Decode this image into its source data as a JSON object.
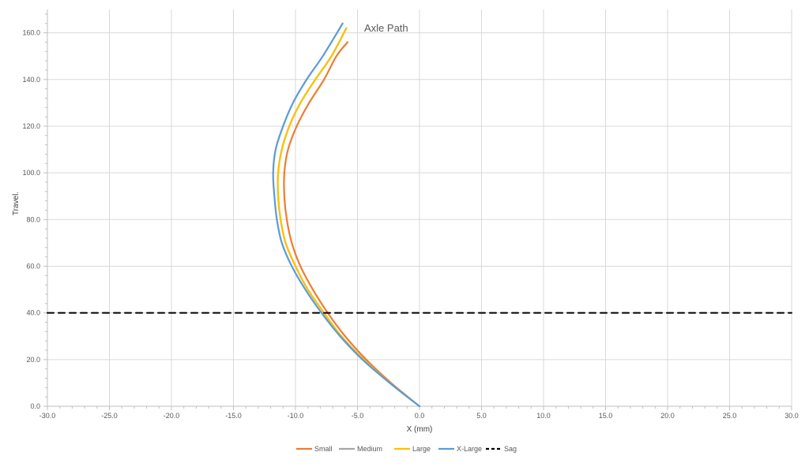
{
  "chart_data": {
    "type": "line",
    "title": "Axle Path",
    "xlabel": "X (mm)",
    "ylabel": "Travel.",
    "xlim": [
      -30,
      30
    ],
    "ylim": [
      0,
      170
    ],
    "x_ticks": [
      "-30.0",
      "-25.0",
      "-20.0",
      "-15.0",
      "-10.0",
      "-5.0",
      "0.0",
      "5.0",
      "10.0",
      "15.0",
      "20.0",
      "25.0",
      "30.0"
    ],
    "y_ticks": [
      "0.0",
      "20.0",
      "40.0",
      "60.0",
      "80.0",
      "100.0",
      "120.0",
      "140.0",
      "160.0"
    ],
    "grid": true,
    "legend_position": "bottom",
    "series": [
      {
        "name": "Small",
        "color": "#ED7D31",
        "points": [
          [
            0,
            0
          ],
          [
            -2.3,
            10
          ],
          [
            -4.3,
            20
          ],
          [
            -6.0,
            30
          ],
          [
            -7.4,
            40
          ],
          [
            -8.6,
            50
          ],
          [
            -9.6,
            60
          ],
          [
            -10.3,
            70
          ],
          [
            -10.7,
            80
          ],
          [
            -10.9,
            90
          ],
          [
            -10.9,
            100
          ],
          [
            -10.6,
            110
          ],
          [
            -9.9,
            120
          ],
          [
            -8.9,
            130
          ],
          [
            -7.7,
            140
          ],
          [
            -6.7,
            150
          ],
          [
            -5.8,
            156
          ]
        ]
      },
      {
        "name": "Medium",
        "color": "#A5A5A5",
        "points": [
          [
            0,
            0
          ],
          [
            -2.4,
            10
          ],
          [
            -4.5,
            20
          ],
          [
            -6.3,
            30
          ],
          [
            -7.7,
            40
          ],
          [
            -9.0,
            50
          ],
          [
            -10.0,
            60
          ],
          [
            -10.8,
            70
          ],
          [
            -11.2,
            80
          ],
          [
            -11.4,
            90
          ],
          [
            -11.4,
            100
          ],
          [
            -11.1,
            110
          ],
          [
            -10.5,
            120
          ],
          [
            -9.6,
            130
          ],
          [
            -8.4,
            140
          ],
          [
            -7.1,
            150
          ],
          [
            -5.9,
            162
          ]
        ]
      },
      {
        "name": "Large",
        "color": "#FFC000",
        "points": [
          [
            0,
            0
          ],
          [
            -2.4,
            10
          ],
          [
            -4.5,
            20
          ],
          [
            -6.3,
            30
          ],
          [
            -7.7,
            40
          ],
          [
            -9.0,
            50
          ],
          [
            -10.0,
            60
          ],
          [
            -10.8,
            70
          ],
          [
            -11.2,
            80
          ],
          [
            -11.4,
            90
          ],
          [
            -11.4,
            100
          ],
          [
            -11.1,
            110
          ],
          [
            -10.5,
            120
          ],
          [
            -9.6,
            130
          ],
          [
            -8.4,
            140
          ],
          [
            -7.1,
            150
          ],
          [
            -5.9,
            162
          ]
        ]
      },
      {
        "name": "X-Large",
        "color": "#5B9BD5",
        "points": [
          [
            0,
            0
          ],
          [
            -2.4,
            10
          ],
          [
            -4.6,
            20
          ],
          [
            -6.4,
            30
          ],
          [
            -7.9,
            40
          ],
          [
            -9.2,
            50
          ],
          [
            -10.3,
            60
          ],
          [
            -11.1,
            70
          ],
          [
            -11.5,
            80
          ],
          [
            -11.7,
            90
          ],
          [
            -11.8,
            100
          ],
          [
            -11.6,
            110
          ],
          [
            -11.0,
            120
          ],
          [
            -10.2,
            130
          ],
          [
            -9.1,
            140
          ],
          [
            -7.8,
            150
          ],
          [
            -6.2,
            164
          ]
        ]
      },
      {
        "name": "Sag",
        "color": "#000000",
        "dashed": true,
        "points": [
          [
            -30,
            40
          ],
          [
            30,
            40
          ]
        ]
      }
    ]
  }
}
